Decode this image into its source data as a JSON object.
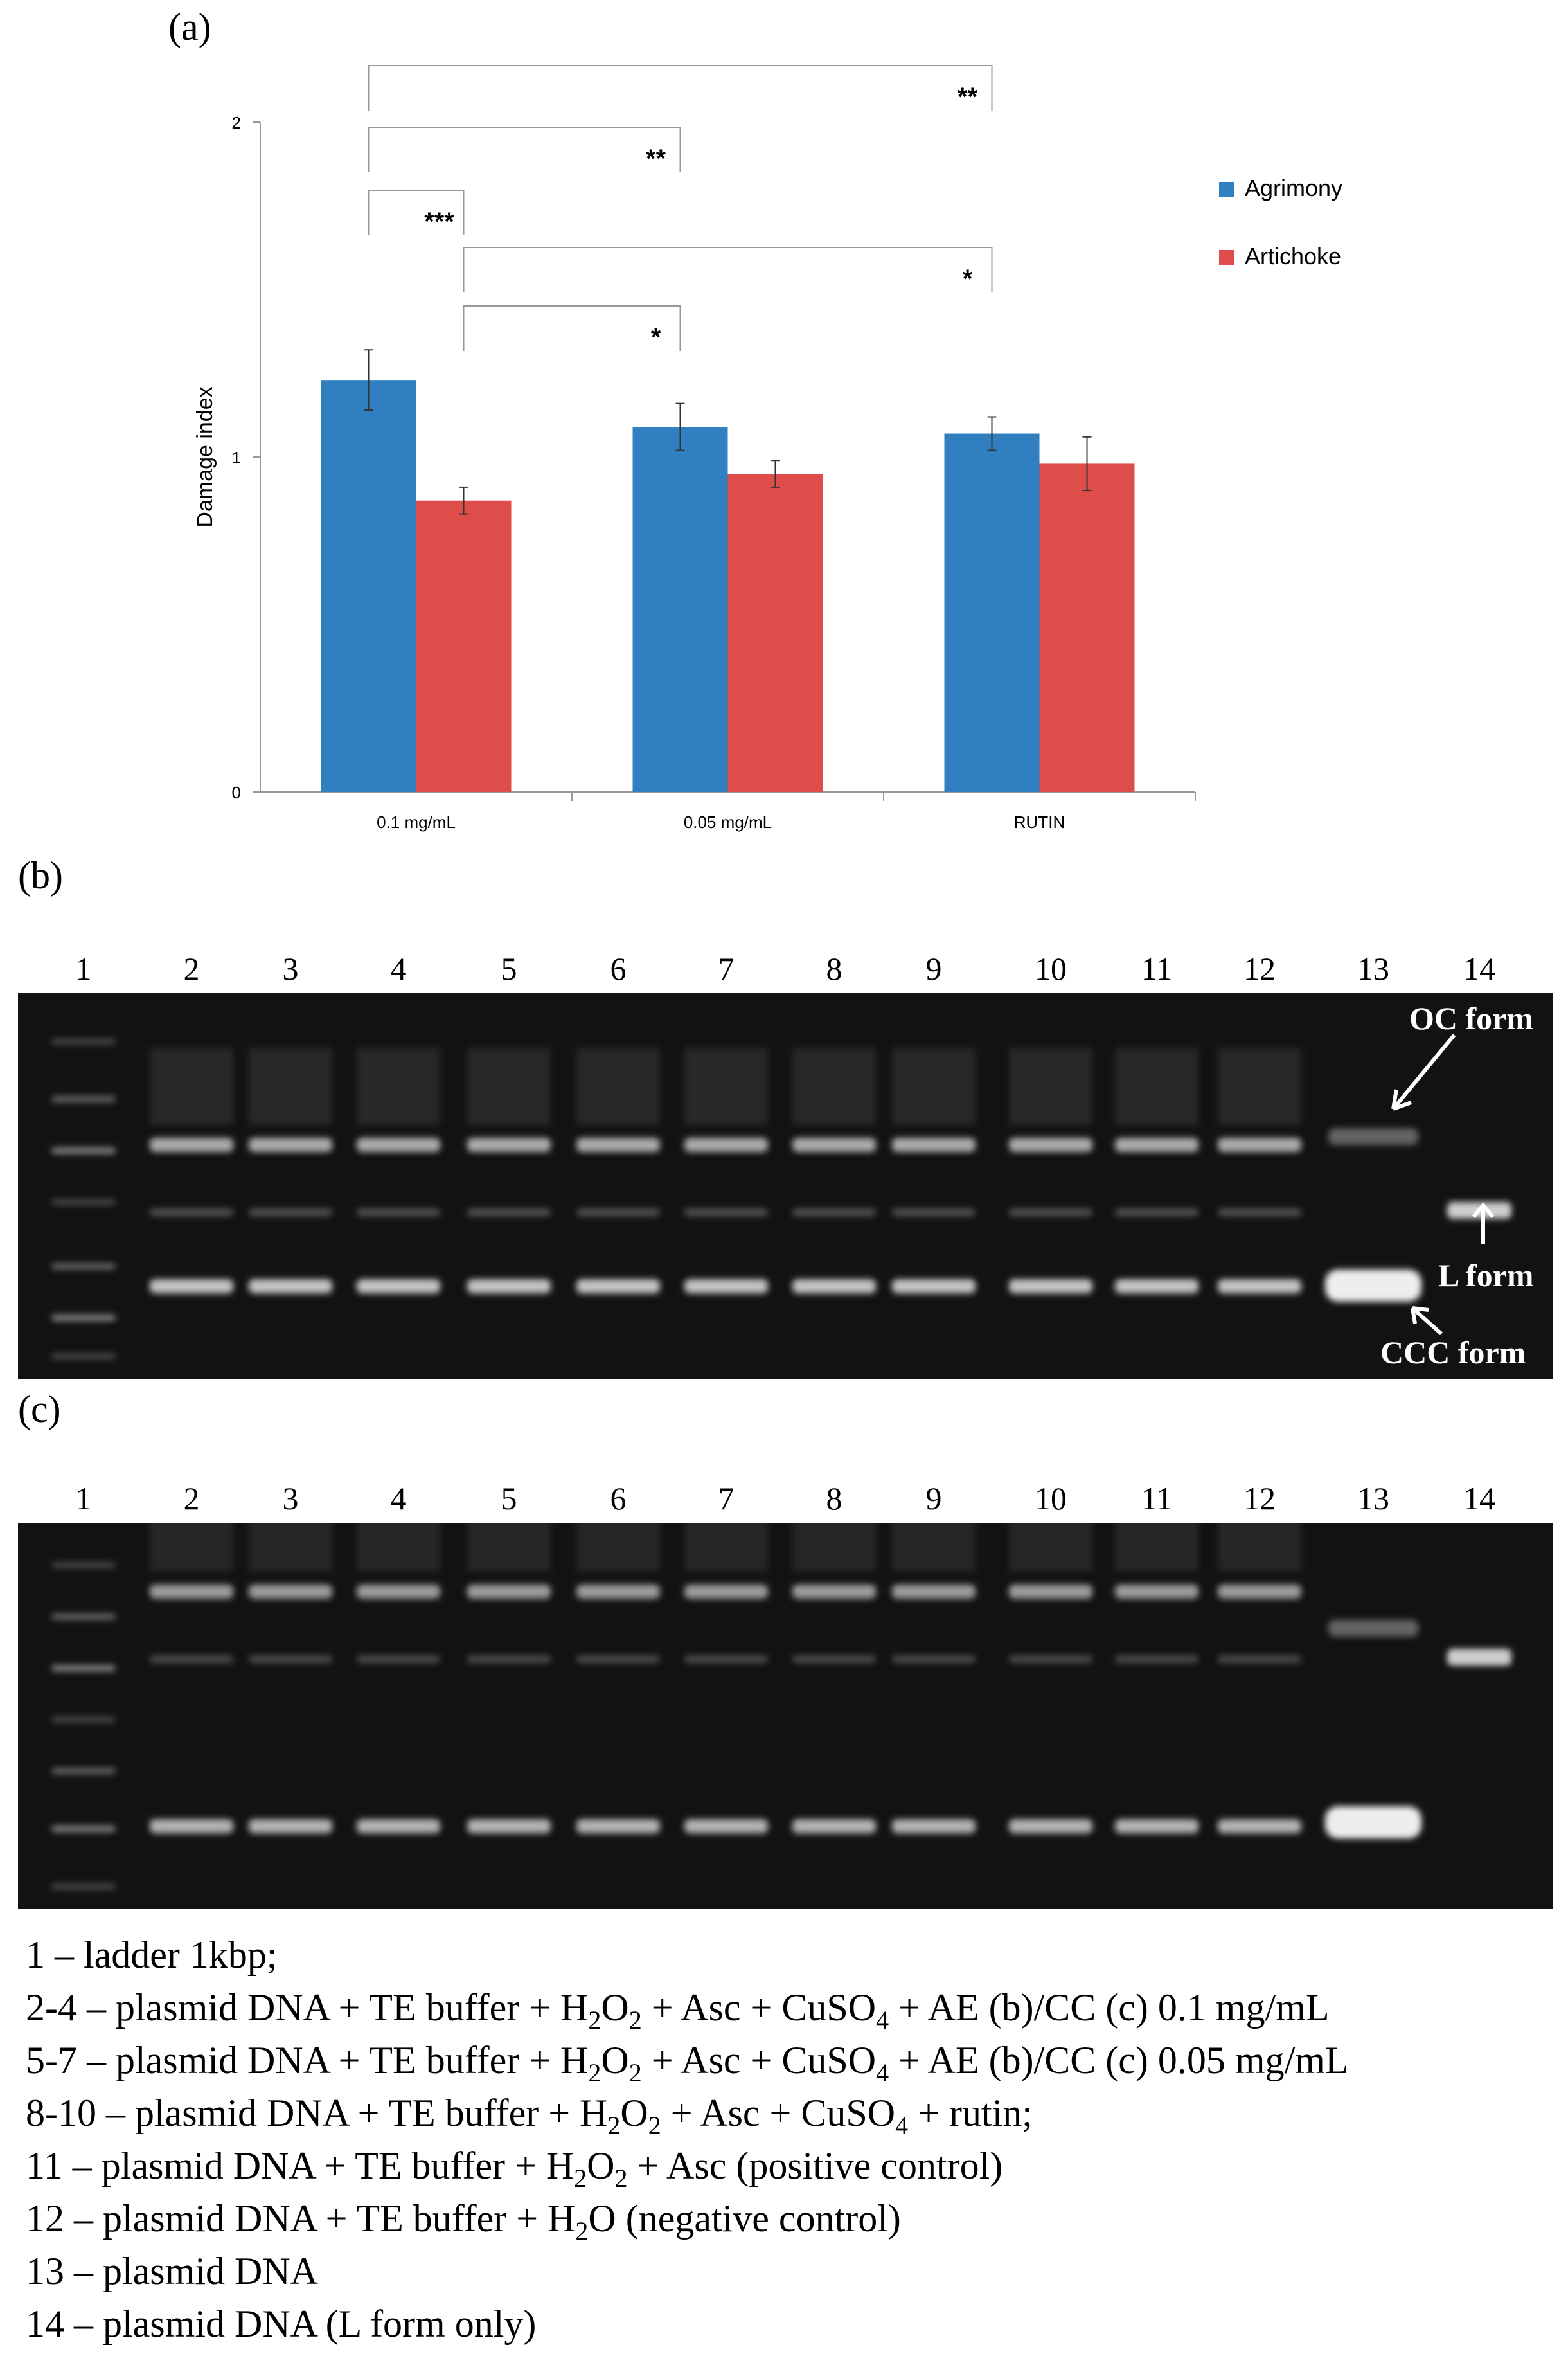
{
  "panels": {
    "a": "(a)",
    "b": "(b)",
    "c": "(c)"
  },
  "chart_data": {
    "type": "bar",
    "title": "",
    "xlabel": "",
    "ylabel": "Damage index",
    "ylim": [
      0,
      2
    ],
    "yticks": [
      "0",
      "1",
      "2"
    ],
    "categories": [
      "0.1 mg/mL",
      "0.05 mg/mL",
      "RUTIN"
    ],
    "series": [
      {
        "name": "Agrimony",
        "color": "#2f7fc1",
        "values": [
          1.23,
          1.09,
          1.07
        ],
        "errors": [
          0.09,
          0.07,
          0.05
        ]
      },
      {
        "name": "Artichoke",
        "color": "#de4d4a",
        "values": [
          0.87,
          0.95,
          0.98
        ],
        "errors": [
          0.04,
          0.04,
          0.08
        ]
      }
    ],
    "legend_position": "top-right",
    "significance": [
      {
        "from": [
          0,
          0
        ],
        "to": [
          2,
          0
        ],
        "label": "**"
      },
      {
        "from": [
          0,
          0
        ],
        "to": [
          1,
          0
        ],
        "label": "**"
      },
      {
        "from": [
          0,
          0
        ],
        "to": [
          0,
          1
        ],
        "label": "***"
      },
      {
        "from": [
          0,
          1
        ],
        "to": [
          2,
          0
        ],
        "label": "*"
      },
      {
        "from": [
          0,
          1
        ],
        "to": [
          1,
          0
        ],
        "label": "*"
      }
    ]
  },
  "gel_b": {
    "lanes": [
      "1",
      "2",
      "3",
      "4",
      "5",
      "6",
      "7",
      "8",
      "9",
      "10",
      "11",
      "12",
      "13",
      "14"
    ],
    "annotations": {
      "oc": "OC form",
      "l": "L form",
      "ccc": "CCC form"
    }
  },
  "gel_c": {
    "lanes": [
      "1",
      "2",
      "3",
      "4",
      "5",
      "6",
      "7",
      "8",
      "9",
      "10",
      "11",
      "12",
      "13",
      "14"
    ]
  },
  "legend": {
    "line1": "1 – ladder 1kbp;",
    "line2": {
      "prefix": "2-4 – plasmid DNA + TE buffer + H",
      "sub1": "2",
      "mid1": "O",
      "sub2": "2",
      "mid2": " + Asc + CuSO",
      "sub3": "4",
      "suffix": " + AE (b)/CC (c) 0.1 mg/mL"
    },
    "line3": {
      "prefix": "5-7 – plasmid DNA + TE buffer + H",
      "sub1": "2",
      "mid1": "O",
      "sub2": "2",
      "mid2": " + Asc + CuSO",
      "sub3": "4",
      "suffix": " + AE (b)/CC (c) 0.05 mg/mL"
    },
    "line4": {
      "prefix": "8-10 – plasmid DNA + TE buffer + H",
      "sub1": "2",
      "mid1": "O",
      "sub2": "2",
      "mid2": " + Asc + CuSO",
      "sub3": "4",
      "suffix": " + rutin;"
    },
    "line5": {
      "prefix": "11 – plasmid DNA + TE buffer + H",
      "sub1": "2",
      "mid1": "O",
      "sub2": "2",
      "suffix": " + Asc (positive control)"
    },
    "line6": {
      "prefix": "12 – plasmid DNA + TE buffer + H",
      "sub1": "2",
      "suffix": "O  (negative control)"
    },
    "line7": "13 – plasmid DNA",
    "line8": "14 – plasmid DNA (L form only)"
  }
}
